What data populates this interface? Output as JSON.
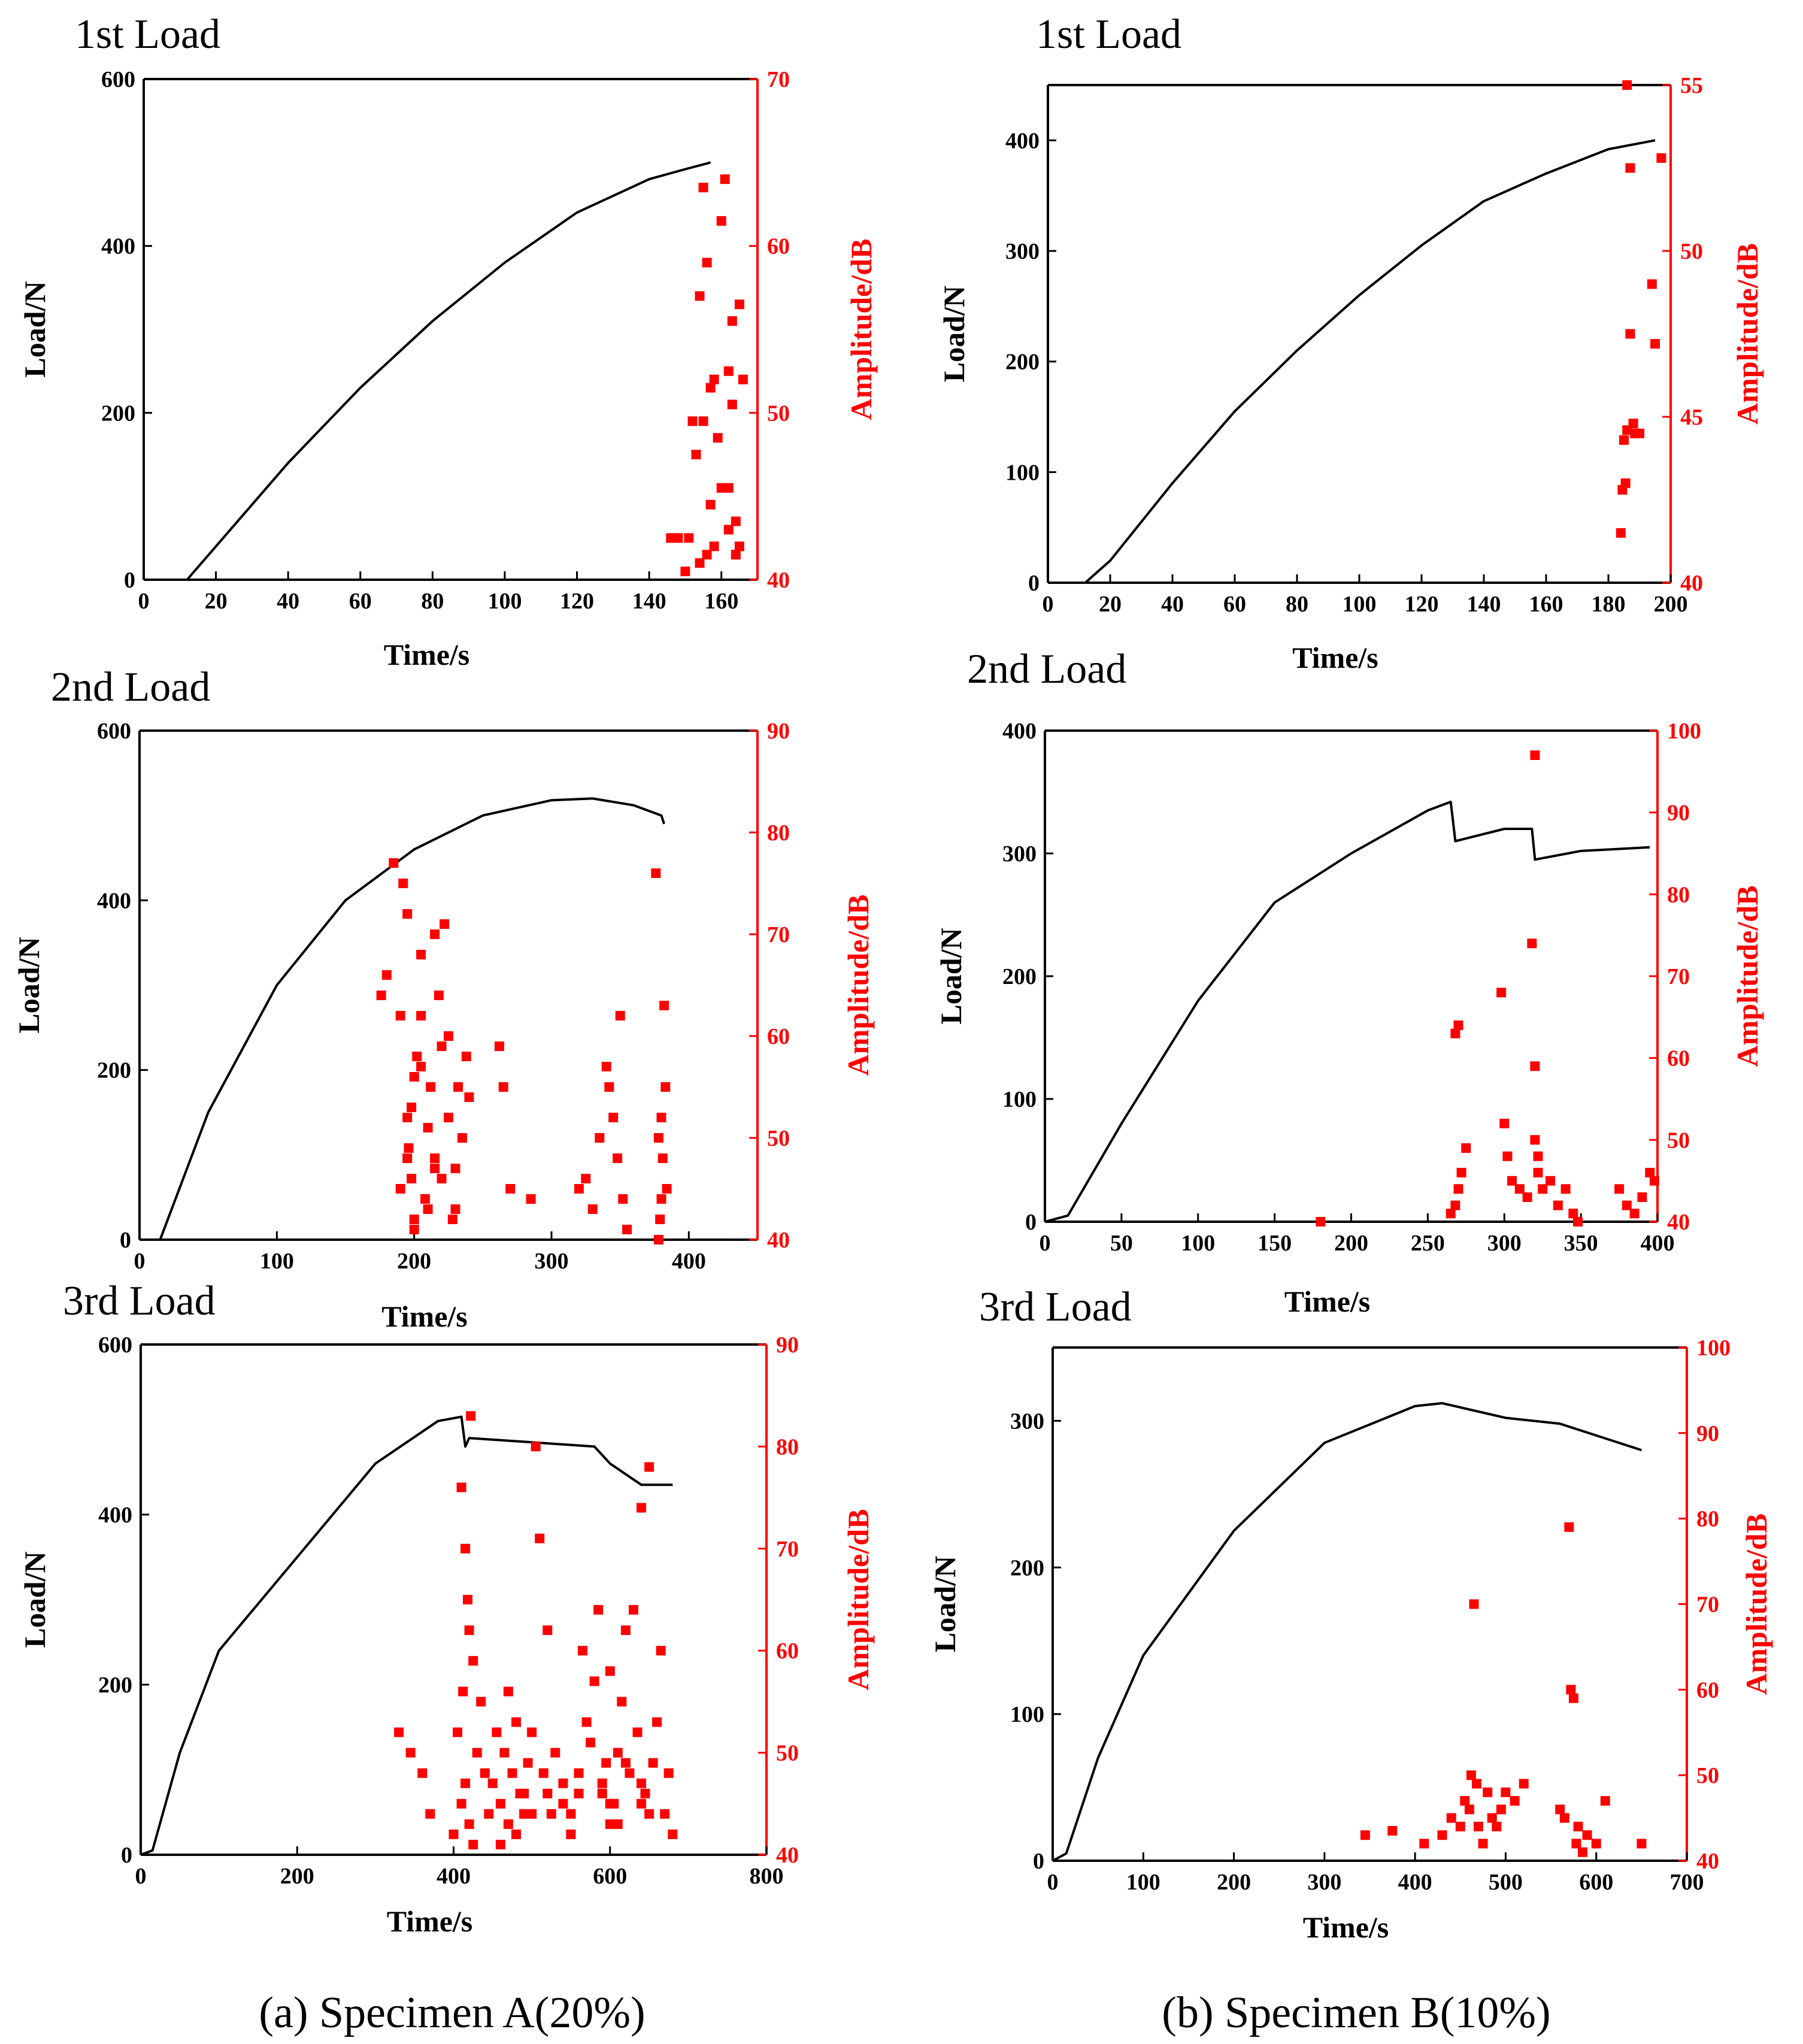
{
  "figure": {
    "caption_a": "(a) Specimen A(20%)",
    "caption_b": "(b) Specimen B(10%)",
    "load_color": "#000000",
    "amp_color": "#ff0000"
  },
  "chart_data": [
    {
      "id": "a1",
      "type": "scatter",
      "title": "1st Load",
      "xlabel": "Time/s",
      "ylabel": "Load/N",
      "y2label": "Amplitude/dB",
      "xlim": [
        0,
        170
      ],
      "xticks": [
        0,
        20,
        40,
        60,
        80,
        100,
        120,
        140,
        160
      ],
      "ylim": [
        0,
        600
      ],
      "yticks": [
        0,
        200,
        400,
        600
      ],
      "y2lim": [
        40,
        70
      ],
      "y2ticks": [
        40,
        50,
        60,
        70
      ],
      "load": {
        "name": "Load",
        "x": [
          0,
          12,
          20,
          40,
          60,
          80,
          100,
          120,
          140,
          150,
          157
        ],
        "y": [
          0,
          0,
          40,
          140,
          230,
          310,
          380,
          440,
          480,
          492,
          500
        ]
      },
      "amplitude": {
        "name": "Amplitude",
        "x": [
          146,
          148,
          150,
          151,
          152,
          153,
          154,
          154,
          155,
          155,
          156,
          156,
          157,
          157,
          158,
          158,
          159,
          160,
          160,
          161,
          162,
          162,
          162,
          163,
          163,
          164,
          164,
          165,
          165,
          166
        ],
        "y": [
          42.5,
          42.5,
          40.5,
          42.5,
          49.5,
          47.5,
          57,
          41,
          49.5,
          63.5,
          59,
          41.5,
          51.5,
          44.5,
          52,
          42,
          48.5,
          61.5,
          45.5,
          64,
          52.5,
          43,
          45.5,
          55.5,
          50.5,
          41.5,
          43.5,
          42,
          56.5,
          52
        ]
      }
    },
    {
      "id": "b1",
      "type": "scatter",
      "title": "1st Load",
      "xlabel": "Time/s",
      "ylabel": "Load/N",
      "y2label": "Amplitude/dB",
      "xlim": [
        0,
        200
      ],
      "xticks": [
        0,
        20,
        40,
        60,
        80,
        100,
        120,
        140,
        160,
        180,
        200
      ],
      "ylim": [
        0,
        450
      ],
      "yticks": [
        0,
        100,
        200,
        300,
        400
      ],
      "y2lim": [
        40,
        55
      ],
      "y2ticks": [
        40,
        45,
        50,
        55
      ],
      "load": {
        "name": "Load",
        "x": [
          0,
          12,
          20,
          40,
          60,
          80,
          100,
          120,
          140,
          160,
          180,
          195
        ],
        "y": [
          0,
          0,
          20,
          90,
          155,
          210,
          260,
          305,
          345,
          370,
          392,
          400
        ]
      },
      "amplitude": {
        "name": "Amplitude",
        "x": [
          184,
          184.5,
          185,
          185.5,
          186,
          186,
          187,
          187,
          188,
          188.5,
          190,
          194,
          195,
          197
        ],
        "y": [
          41.5,
          42.8,
          44.3,
          43,
          44.6,
          55,
          52.5,
          47.5,
          44.8,
          44.5,
          44.5,
          49,
          47.2,
          52.8
        ]
      }
    },
    {
      "id": "a2",
      "type": "scatter",
      "title": "2nd Load",
      "xlabel": "Time/s",
      "ylabel": "Load/N",
      "y2label": "Amplitude/dB",
      "xlim": [
        0,
        450
      ],
      "xticks": [
        0,
        100,
        200,
        300,
        400
      ],
      "ylim": [
        0,
        600
      ],
      "yticks": [
        0,
        200,
        400,
        600
      ],
      "y2lim": [
        40,
        90
      ],
      "y2ticks": [
        40,
        50,
        60,
        70,
        80,
        90
      ],
      "load": {
        "name": "Load",
        "x": [
          0,
          15,
          50,
          100,
          150,
          200,
          250,
          300,
          330,
          360,
          380,
          382
        ],
        "y": [
          0,
          0,
          150,
          300,
          400,
          460,
          500,
          518,
          520,
          512,
          500,
          490
        ]
      },
      "amplitude": {
        "name": "Amplitude",
        "x": [
          176,
          180,
          185,
          190,
          192,
          195,
          195,
          198,
          200,
          202,
          205,
          205,
          208,
          210,
          212,
          215,
          215,
          218,
          220,
          222,
          225,
          228,
          230,
          232,
          235,
          238,
          240,
          190,
          196,
          200,
          210,
          220,
          230,
          200,
          205,
          215,
          225,
          195,
          198,
          262,
          265,
          270,
          285,
          320,
          325,
          330,
          335,
          340,
          342,
          345,
          348,
          350,
          352,
          355,
          378,
          380,
          382,
          384,
          376,
          379,
          381,
          383,
          378,
          380
        ],
        "y": [
          64,
          66,
          77,
          62,
          75,
          72,
          48,
          53,
          56,
          58,
          62,
          68,
          44,
          51,
          55,
          70,
          47,
          64,
          59,
          71,
          52,
          42,
          47,
          55,
          50,
          58,
          54,
          45,
          49,
          41,
          43,
          46,
          43,
          42,
          57,
          48,
          60,
          52,
          46,
          59,
          55,
          45,
          44,
          45,
          46,
          43,
          50,
          57,
          55,
          52,
          48,
          62,
          44,
          41,
          50,
          52,
          63,
          45,
          76,
          42,
          48,
          55,
          40,
          44
        ]
      }
    },
    {
      "id": "b2",
      "type": "scatter",
      "title": "2nd Load",
      "xlabel": "Time/s",
      "ylabel": "Load/N",
      "y2label": "Amplitude/dB",
      "xlim": [
        0,
        400
      ],
      "xticks": [
        0,
        50,
        100,
        150,
        200,
        250,
        300,
        350,
        400
      ],
      "ylim": [
        0,
        400
      ],
      "yticks": [
        0,
        100,
        200,
        300,
        400
      ],
      "y2lim": [
        40,
        100
      ],
      "y2ticks": [
        40,
        50,
        60,
        70,
        80,
        90,
        100
      ],
      "load": {
        "name": "Load",
        "x": [
          0,
          15,
          50,
          100,
          150,
          200,
          250,
          265,
          268,
          300,
          318,
          320,
          350,
          395
        ],
        "y": [
          0,
          5,
          80,
          180,
          260,
          300,
          335,
          342,
          310,
          320,
          320,
          295,
          302,
          305
        ]
      },
      "amplitude": {
        "name": "Amplitude",
        "x": [
          180,
          265,
          268,
          270,
          272,
          275,
          268,
          270,
          298,
          300,
          302,
          305,
          310,
          315,
          318,
          320,
          320,
          320,
          322,
          322,
          325,
          330,
          335,
          340,
          345,
          348,
          375,
          380,
          385,
          390,
          395,
          398
        ],
        "y": [
          40,
          41,
          42,
          44,
          46,
          49,
          63,
          64,
          68,
          52,
          48,
          45,
          44,
          43,
          74,
          59,
          97,
          50,
          48,
          46,
          44,
          45,
          42,
          44,
          41,
          40,
          44,
          42,
          41,
          43,
          46,
          45
        ]
      }
    },
    {
      "id": "a3",
      "type": "scatter",
      "title": "3rd Load",
      "xlabel": "Time/s",
      "ylabel": "Load/N",
      "y2label": "Amplitude/dB",
      "xlim": [
        0,
        800
      ],
      "xticks": [
        0,
        200,
        400,
        600,
        800
      ],
      "ylim": [
        0,
        600
      ],
      "yticks": [
        0,
        200,
        400,
        600
      ],
      "y2lim": [
        40,
        90
      ],
      "y2ticks": [
        40,
        50,
        60,
        70,
        80,
        90
      ],
      "load": {
        "name": "Load",
        "x": [
          0,
          15,
          50,
          100,
          200,
          300,
          380,
          410,
          415,
          420,
          500,
          580,
          600,
          640,
          680
        ],
        "y": [
          0,
          5,
          120,
          240,
          350,
          460,
          510,
          515,
          480,
          490,
          485,
          480,
          460,
          435,
          435
        ]
      },
      "amplitude": {
        "name": "Amplitude",
        "x": [
          330,
          345,
          360,
          370,
          400,
          405,
          410,
          412,
          415,
          418,
          420,
          422,
          425,
          430,
          435,
          440,
          445,
          450,
          455,
          460,
          465,
          470,
          475,
          480,
          485,
          490,
          495,
          500,
          505,
          510,
          515,
          520,
          525,
          530,
          540,
          550,
          560,
          565,
          570,
          575,
          580,
          585,
          590,
          595,
          600,
          605,
          610,
          615,
          620,
          625,
          630,
          635,
          640,
          645,
          650,
          655,
          660,
          665,
          670,
          675,
          680,
          410,
          415,
          420,
          425,
          500,
          520,
          560,
          600,
          610,
          620,
          640,
          650,
          460,
          470,
          480,
          490,
          540,
          550,
          590,
          600,
          640
        ],
        "y": [
          52,
          50,
          48,
          44,
          42,
          52,
          76,
          56,
          70,
          65,
          62,
          83,
          59,
          50,
          55,
          48,
          44,
          47,
          52,
          45,
          50,
          56,
          48,
          53,
          46,
          44,
          49,
          52,
          80,
          71,
          48,
          62,
          44,
          50,
          47,
          42,
          46,
          60,
          53,
          51,
          57,
          64,
          46,
          49,
          58,
          45,
          50,
          55,
          62,
          48,
          64,
          52,
          74,
          46,
          78,
          49,
          53,
          60,
          44,
          48,
          42,
          45,
          47,
          43,
          41,
          44,
          46,
          48,
          45,
          43,
          49,
          47,
          44,
          41,
          43,
          42,
          46,
          45,
          44,
          47,
          43,
          45
        ]
      }
    },
    {
      "id": "b3",
      "type": "scatter",
      "title": "3rd Load",
      "xlabel": "Time/s",
      "ylabel": "Load/N",
      "y2label": "Amplitude/dB",
      "xlim": [
        0,
        700
      ],
      "xticks": [
        0,
        100,
        200,
        300,
        400,
        500,
        600,
        700
      ],
      "ylim": [
        0,
        350
      ],
      "yticks": [
        0,
        100,
        200,
        300
      ],
      "y2lim": [
        40,
        100
      ],
      "y2ticks": [
        40,
        50,
        60,
        70,
        80,
        90,
        100
      ],
      "load": {
        "name": "Load",
        "x": [
          0,
          15,
          50,
          100,
          200,
          300,
          400,
          430,
          500,
          560,
          600,
          650
        ],
        "y": [
          0,
          5,
          70,
          140,
          225,
          285,
          310,
          312,
          302,
          298,
          290,
          280
        ]
      },
      "amplitude": {
        "name": "Amplitude",
        "x": [
          345,
          375,
          410,
          430,
          440,
          450,
          455,
          460,
          462,
          465,
          468,
          470,
          475,
          480,
          485,
          490,
          495,
          500,
          510,
          520,
          560,
          565,
          570,
          572,
          575,
          578,
          580,
          585,
          590,
          600,
          610,
          650
        ],
        "y": [
          43,
          43.5,
          42,
          43,
          45,
          44,
          47,
          46,
          50,
          70,
          49,
          44,
          42,
          48,
          45,
          44,
          46,
          48,
          47,
          49,
          46,
          45,
          79,
          60,
          59,
          42,
          44,
          41,
          43,
          42,
          47,
          42
        ]
      }
    }
  ]
}
